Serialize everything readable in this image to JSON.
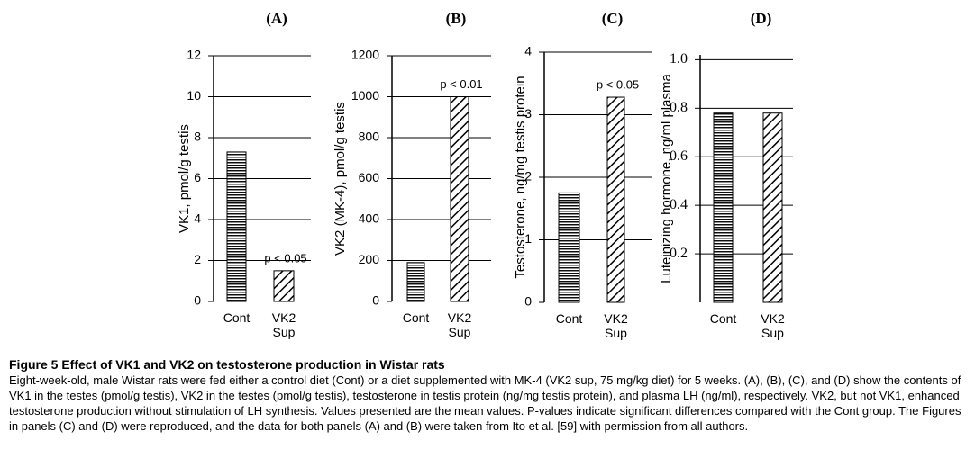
{
  "chart_data": [
    {
      "type": "bar",
      "title": "(A)",
      "y_label": "VK1, pmol/g testis",
      "categories": [
        "Cont",
        "VK2 Sup"
      ],
      "values": [
        7.3,
        1.5
      ],
      "patterns": [
        "horizontal",
        "diagonal"
      ],
      "ylim": [
        0,
        12
      ],
      "yticks": [
        0,
        2,
        4,
        6,
        8,
        10,
        12
      ],
      "grid": true,
      "annotations": [
        null,
        "p < 0.05"
      ]
    },
    {
      "type": "bar",
      "title": "(B)",
      "y_label": "VK2 (MK-4), pmol/g testis",
      "categories": [
        "Cont",
        "VK2 Sup"
      ],
      "values": [
        190,
        1000
      ],
      "patterns": [
        "horizontal",
        "diagonal"
      ],
      "ylim": [
        0,
        1200
      ],
      "yticks": [
        0,
        200,
        400,
        600,
        800,
        1000,
        1200
      ],
      "grid": true,
      "annotations": [
        null,
        "p < 0.01"
      ]
    },
    {
      "type": "bar",
      "title": "(C)",
      "y_label": "Testosterone, ng/mg testis protein",
      "categories": [
        "Cont",
        "VK2 Sup"
      ],
      "values": [
        1.75,
        3.28
      ],
      "patterns": [
        "horizontal",
        "diagonal"
      ],
      "ylim": [
        0,
        4
      ],
      "yticks": [
        0,
        1,
        2,
        3,
        4
      ],
      "grid": true,
      "annotations": [
        null,
        "p < 0.05"
      ]
    },
    {
      "type": "bar",
      "title": "(D)",
      "y_label": "Luteinizing hormone, ng/ml plasma",
      "categories": [
        "Cont",
        "VK2 Sup"
      ],
      "values": [
        0.78,
        0.78
      ],
      "patterns": [
        "horizontal",
        "diagonal"
      ],
      "ylim": [
        0,
        1.02
      ],
      "yticks": [
        0.2,
        0.4,
        0.6,
        0.8,
        {
          "value": 1,
          "label": "1.0"
        }
      ],
      "grid": true,
      "annotations": [
        null,
        null
      ]
    }
  ],
  "caption": {
    "title": "Figure 5 Effect of VK1 and VK2 on testosterone production in Wistar rats",
    "text": "Eight-week-old, male Wistar rats were fed either a control diet (Cont) or a diet supplemented with MK-4 (VK2 sup, 75 mg/kg diet) for 5 weeks. (A), (B), (C), and (D) show the contents of VK1 in the testes (pmol/g testis), VK2 in the testes (pmol/g testis), testosterone in testis protein (ng/mg testis protein), and plasma LH (ng/ml), respectively. VK2, but not VK1, enhanced testosterone production without stimulation of LH synthesis. Values presented are the mean values. P-values indicate significant differences compared with the Cont group. The Figures in panels (C) and (D) were reproduced, and the data for both panels (A) and (B) were taken from Ito et al. [59] with permission from all authors."
  }
}
